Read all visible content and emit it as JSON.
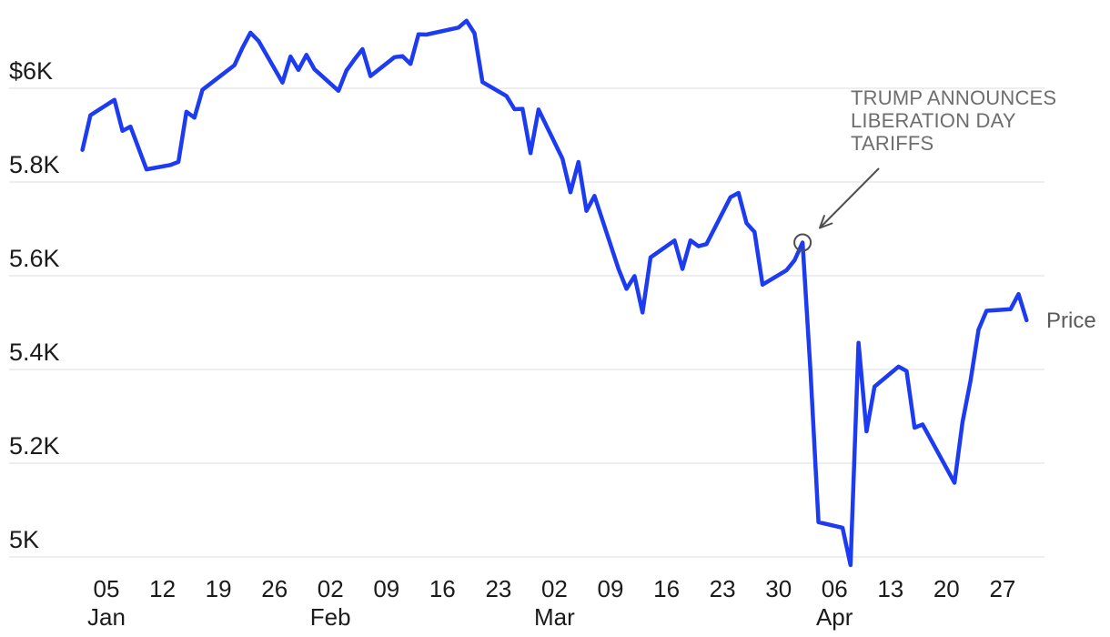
{
  "series_label": "Price",
  "annotation": {
    "lines": [
      "TRUMP ANNOUNCES",
      "LIBERATION DAY",
      "TARIFFS"
    ]
  },
  "chart_data": {
    "type": "line",
    "xlabel": "",
    "ylabel": "",
    "ylim": [
      4950,
      6160
    ],
    "x_domain": [
      "2025-01-02",
      "2025-04-30"
    ],
    "grid": "horizontal",
    "legend_position": "right-inline",
    "colors": {
      "line": "#1d3bf0",
      "grid": "#e8e8e8",
      "axis_text": "#1b1b1b",
      "annotation_text": "#6e6e6e",
      "arrow": "#4f4f4f",
      "background": "#ffffff"
    },
    "y_ticks": [
      {
        "label": "$6K",
        "value": 6000
      },
      {
        "label": "5.8K",
        "value": 5800
      },
      {
        "label": "5.6K",
        "value": 5600
      },
      {
        "label": "5.4K",
        "value": 5400
      },
      {
        "label": "5.2K",
        "value": 5200
      },
      {
        "label": "5K",
        "value": 5000
      }
    ],
    "x_ticks": [
      {
        "day": "05",
        "month": "Jan",
        "date": "2025-01-05"
      },
      {
        "day": "12",
        "date": "2025-01-12"
      },
      {
        "day": "19",
        "date": "2025-01-19"
      },
      {
        "day": "26",
        "date": "2025-01-26"
      },
      {
        "day": "02",
        "month": "Feb",
        "date": "2025-02-02"
      },
      {
        "day": "09",
        "date": "2025-02-09"
      },
      {
        "day": "16",
        "date": "2025-02-16"
      },
      {
        "day": "23",
        "date": "2025-02-23"
      },
      {
        "day": "02",
        "month": "Mar",
        "date": "2025-03-02"
      },
      {
        "day": "09",
        "date": "2025-03-09"
      },
      {
        "day": "16",
        "date": "2025-03-16"
      },
      {
        "day": "23",
        "date": "2025-03-23"
      },
      {
        "day": "30",
        "date": "2025-03-30"
      },
      {
        "day": "06",
        "month": "Apr",
        "date": "2025-04-06"
      },
      {
        "day": "13",
        "date": "2025-04-13"
      },
      {
        "day": "20",
        "date": "2025-04-20"
      },
      {
        "day": "27",
        "date": "2025-04-27"
      }
    ],
    "annotation": {
      "text": "TRUMP ANNOUNCES LIBERATION DAY TARIFFS",
      "target_date": "2025-04-02",
      "target_value": 5670.97
    },
    "series": [
      {
        "name": "Price",
        "points": [
          {
            "date": "2025-01-02",
            "value": 5868.55
          },
          {
            "date": "2025-01-03",
            "value": 5942.47
          },
          {
            "date": "2025-01-06",
            "value": 5975.38
          },
          {
            "date": "2025-01-07",
            "value": 5909.03
          },
          {
            "date": "2025-01-08",
            "value": 5918.25
          },
          {
            "date": "2025-01-10",
            "value": 5827.04
          },
          {
            "date": "2025-01-13",
            "value": 5836.22
          },
          {
            "date": "2025-01-14",
            "value": 5842.91
          },
          {
            "date": "2025-01-15",
            "value": 5949.91
          },
          {
            "date": "2025-01-16",
            "value": 5937.34
          },
          {
            "date": "2025-01-17",
            "value": 5996.66
          },
          {
            "date": "2025-01-21",
            "value": 6049.24
          },
          {
            "date": "2025-01-22",
            "value": 6086.37
          },
          {
            "date": "2025-01-23",
            "value": 6118.71
          },
          {
            "date": "2025-01-24",
            "value": 6101.24
          },
          {
            "date": "2025-01-27",
            "value": 6012.28
          },
          {
            "date": "2025-01-28",
            "value": 6067.7
          },
          {
            "date": "2025-01-29",
            "value": 6039.31
          },
          {
            "date": "2025-01-30",
            "value": 6071.17
          },
          {
            "date": "2025-01-31",
            "value": 6040.53
          },
          {
            "date": "2025-02-03",
            "value": 5994.57
          },
          {
            "date": "2025-02-04",
            "value": 6037.88
          },
          {
            "date": "2025-02-05",
            "value": 6061.48
          },
          {
            "date": "2025-02-06",
            "value": 6083.57
          },
          {
            "date": "2025-02-07",
            "value": 6025.99
          },
          {
            "date": "2025-02-10",
            "value": 6066.44
          },
          {
            "date": "2025-02-11",
            "value": 6068.5
          },
          {
            "date": "2025-02-12",
            "value": 6051.97
          },
          {
            "date": "2025-02-13",
            "value": 6115.07
          },
          {
            "date": "2025-02-14",
            "value": 6114.63
          },
          {
            "date": "2025-02-18",
            "value": 6129.58
          },
          {
            "date": "2025-02-19",
            "value": 6144.15
          },
          {
            "date": "2025-02-20",
            "value": 6117.52
          },
          {
            "date": "2025-02-21",
            "value": 6013.13
          },
          {
            "date": "2025-02-24",
            "value": 5983.25
          },
          {
            "date": "2025-02-25",
            "value": 5955.25
          },
          {
            "date": "2025-02-26",
            "value": 5956.06
          },
          {
            "date": "2025-02-27",
            "value": 5861.57
          },
          {
            "date": "2025-02-28",
            "value": 5954.5
          },
          {
            "date": "2025-03-03",
            "value": 5849.72
          },
          {
            "date": "2025-03-04",
            "value": 5778.15
          },
          {
            "date": "2025-03-05",
            "value": 5842.63
          },
          {
            "date": "2025-03-06",
            "value": 5738.52
          },
          {
            "date": "2025-03-07",
            "value": 5770.2
          },
          {
            "date": "2025-03-10",
            "value": 5614.56
          },
          {
            "date": "2025-03-11",
            "value": 5572.07
          },
          {
            "date": "2025-03-12",
            "value": 5599.3
          },
          {
            "date": "2025-03-13",
            "value": 5521.52
          },
          {
            "date": "2025-03-14",
            "value": 5638.94
          },
          {
            "date": "2025-03-17",
            "value": 5675.12
          },
          {
            "date": "2025-03-18",
            "value": 5614.66
          },
          {
            "date": "2025-03-19",
            "value": 5675.29
          },
          {
            "date": "2025-03-20",
            "value": 5662.89
          },
          {
            "date": "2025-03-21",
            "value": 5667.56
          },
          {
            "date": "2025-03-24",
            "value": 5767.57
          },
          {
            "date": "2025-03-25",
            "value": 5776.65
          },
          {
            "date": "2025-03-26",
            "value": 5712.2
          },
          {
            "date": "2025-03-27",
            "value": 5693.31
          },
          {
            "date": "2025-03-28",
            "value": 5580.94
          },
          {
            "date": "2025-03-31",
            "value": 5611.85
          },
          {
            "date": "2025-04-01",
            "value": 5633.07
          },
          {
            "date": "2025-04-02",
            "value": 5670.97
          },
          {
            "date": "2025-04-03",
            "value": 5396.52
          },
          {
            "date": "2025-04-04",
            "value": 5074.08
          },
          {
            "date": "2025-04-07",
            "value": 5062.25
          },
          {
            "date": "2025-04-08",
            "value": 4982.77
          },
          {
            "date": "2025-04-09",
            "value": 5456.9
          },
          {
            "date": "2025-04-10",
            "value": 5268.05
          },
          {
            "date": "2025-04-11",
            "value": 5363.36
          },
          {
            "date": "2025-04-14",
            "value": 5405.97
          },
          {
            "date": "2025-04-15",
            "value": 5396.63
          },
          {
            "date": "2025-04-16",
            "value": 5275.7
          },
          {
            "date": "2025-04-17",
            "value": 5282.7
          },
          {
            "date": "2025-04-21",
            "value": 5158.2
          },
          {
            "date": "2025-04-22",
            "value": 5287.76
          },
          {
            "date": "2025-04-23",
            "value": 5375.86
          },
          {
            "date": "2025-04-24",
            "value": 5484.77
          },
          {
            "date": "2025-04-25",
            "value": 5525.21
          },
          {
            "date": "2025-04-28",
            "value": 5528.75
          },
          {
            "date": "2025-04-29",
            "value": 5560.83
          },
          {
            "date": "2025-04-30",
            "value": 5505.0
          }
        ]
      }
    ]
  }
}
